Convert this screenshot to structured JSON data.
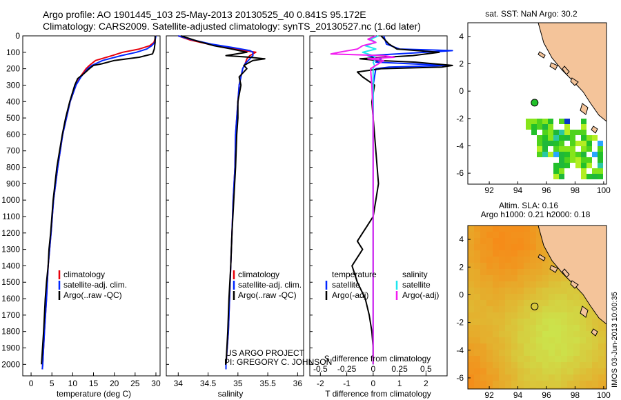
{
  "header": {
    "line1": "Argo profile: AO 1901445_103 25-May-2013 20130525_40 0.841S 95.172E",
    "line2": "Climatology: CARS2009. Satellite-adjusted climatology: synTS_20130527.nc (1.6d later)"
  },
  "colors": {
    "climatology": "#e8000b",
    "satellite": "#0026ff",
    "argo": "#000000",
    "s_satellite": "#1ee6ef",
    "s_argo": "#f21ef0",
    "land": "#f4c49a"
  },
  "depth_axis": {
    "ticks": [
      0,
      100,
      200,
      300,
      400,
      500,
      600,
      700,
      800,
      900,
      1000,
      1100,
      1200,
      1300,
      1400,
      1500,
      1600,
      1700,
      1800,
      1900,
      2000
    ],
    "ylim": [
      0,
      2070
    ]
  },
  "chart_data": [
    {
      "type": "line",
      "name": "temperature",
      "xlabel": "temperature (deg C)",
      "ylabel": "pressure",
      "xlim": [
        -2,
        31
      ],
      "xticks": [
        0,
        5,
        10,
        15,
        20,
        25,
        30
      ],
      "ylim": [
        0,
        2070
      ],
      "legend": [
        "climatology",
        "satellite-adj. clim.",
        "Argo(..raw -QC)"
      ],
      "legend_position": "bottom-center",
      "series": [
        {
          "name": "climatology",
          "color": "#e8000b",
          "depth": [
            0,
            40,
            60,
            80,
            100,
            120,
            150,
            180,
            200,
            250,
            300,
            400,
            500,
            600,
            800,
            1000,
            1200,
            1400,
            1600,
            1800,
            2000,
            2030
          ],
          "values": [
            30,
            29.5,
            28.5,
            26,
            22,
            19.5,
            15.5,
            14,
            13.2,
            11.8,
            10.8,
            9.4,
            8.5,
            7.6,
            6.4,
            5.4,
            4.8,
            4.1,
            3.7,
            3.2,
            2.8,
            2.7
          ]
        },
        {
          "name": "satellite-adj. clim.",
          "color": "#0026ff",
          "depth": [
            0,
            40,
            60,
            80,
            100,
            120,
            150,
            180,
            200,
            250,
            300,
            400,
            500,
            600,
            800,
            1000,
            1200,
            1400,
            1600,
            1800,
            2000,
            2030
          ],
          "values": [
            30,
            29.7,
            29,
            27.8,
            25.3,
            21.7,
            17.2,
            14.6,
            13.6,
            12,
            10.8,
            9.4,
            8.5,
            7.6,
            6.4,
            5.4,
            4.8,
            4.1,
            3.7,
            3.2,
            2.8,
            2.7
          ]
        },
        {
          "name": "Argo(..raw -QC)",
          "color": "#000000",
          "depth": [
            0,
            40,
            80,
            110,
            130,
            150,
            170,
            180,
            200,
            230,
            260,
            300,
            400,
            500,
            600,
            800,
            1000,
            1200,
            1300,
            1400,
            1500,
            1600,
            1800,
            2000
          ],
          "values": [
            29.8,
            29.8,
            29.6,
            29.2,
            26,
            20,
            17,
            15,
            14,
            12.7,
            11.2,
            10.5,
            9.3,
            8.3,
            7.5,
            6.2,
            5.3,
            4.7,
            4.3,
            4.1,
            3.7,
            3.4,
            3,
            2.5
          ]
        }
      ]
    },
    {
      "type": "line",
      "name": "salinity",
      "xlabel": "salinity",
      "ylabel": "pressure",
      "xlim": [
        33.8,
        36.1
      ],
      "xticks": [
        34,
        34.5,
        35,
        35.5,
        36
      ],
      "ylim": [
        0,
        2070
      ],
      "legend": [
        "climatology",
        "satellite-adj. clim.",
        "Argo(..raw -QC)"
      ],
      "legend_position": "bottom-right",
      "series": [
        {
          "name": "climatology",
          "color": "#e8000b",
          "depth": [
            0,
            25,
            50,
            70,
            90,
            100,
            120,
            140,
            170,
            200,
            250,
            300,
            400,
            500,
            600,
            800,
            1000,
            1200,
            1400,
            1600,
            1800,
            2000,
            2030
          ],
          "values": [
            34,
            34.2,
            34.5,
            34.8,
            35.1,
            35.3,
            35.2,
            35.15,
            35.12,
            35.08,
            35.05,
            35.02,
            35,
            34.98,
            34.96,
            34.95,
            34.92,
            34.9,
            34.88,
            34.86,
            34.84,
            34.8,
            34.8
          ]
        },
        {
          "name": "satellite-adj. clim.",
          "color": "#0026ff",
          "depth": [
            0,
            25,
            50,
            70,
            90,
            100,
            120,
            140,
            170,
            200,
            250,
            300,
            400,
            500,
            600,
            800,
            1000,
            1200,
            1400,
            1600,
            1800,
            2000,
            2030
          ],
          "values": [
            34,
            34.25,
            34.55,
            34.9,
            35.2,
            35.25,
            35.25,
            35.2,
            35.12,
            35.08,
            35.05,
            35.02,
            35,
            34.98,
            34.96,
            34.95,
            34.92,
            34.9,
            34.88,
            34.86,
            34.84,
            34.8,
            34.8
          ]
        },
        {
          "name": "Argo(..raw -QC)",
          "color": "#000000",
          "depth": [
            0,
            30,
            60,
            80,
            100,
            120,
            130,
            140,
            150,
            160,
            180,
            200,
            250,
            300,
            400,
            500,
            600,
            800,
            1000,
            1200,
            1400,
            1600,
            1800,
            2000
          ],
          "values": [
            34.05,
            34.3,
            34.6,
            34.9,
            35.15,
            34.8,
            35.2,
            35.45,
            35.25,
            35.2,
            35.1,
            35.15,
            35.02,
            35.05,
            35,
            35,
            34.98,
            34.96,
            34.93,
            34.9,
            34.88,
            34.85,
            34.83,
            34.8
          ]
        }
      ]
    },
    {
      "type": "line",
      "name": "difference from climatology",
      "xlabel": "T difference from climatology",
      "xlabel_top": "S difference from climatology",
      "xlim": [
        -2.4,
        2.8
      ],
      "xticks": [
        -2,
        -1,
        0,
        1,
        2
      ],
      "s_xticks": [
        {
          "label": "-0.5",
          "at": -2
        },
        {
          "label": "-0.25",
          "at": -1
        },
        {
          "label": "0",
          "at": 0
        },
        {
          "label": "0.25",
          "at": 1
        },
        {
          "label": "0.5",
          "at": 2
        }
      ],
      "ylim": [
        0,
        2070
      ],
      "legend_position": "bottom-center",
      "legend": {
        "temperature": {
          "title": "temperature",
          "items": [
            "satellite",
            "Argo(-adj)"
          ]
        },
        "salinity": {
          "title": "salinity",
          "items": [
            "satellite",
            "Argo(-adj)"
          ]
        }
      },
      "series": [
        {
          "name": "T satellite",
          "color": "#0026ff",
          "depth": [
            0,
            50,
            80,
            90,
            100,
            120,
            140,
            160,
            180,
            190,
            200,
            300,
            600,
            1000,
            1500,
            2000
          ],
          "values": [
            0.4,
            0.5,
            1,
            3,
            2,
            -0.2,
            0.3,
            0.1,
            2.8,
            0.6,
            0.1,
            0,
            0,
            0,
            0,
            0
          ]
        },
        {
          "name": "T Argo(-adj)",
          "color": "#000000",
          "depth": [
            0,
            50,
            80,
            100,
            120,
            140,
            150,
            160,
            180,
            190,
            200,
            220,
            250,
            300,
            400,
            500,
            600,
            700,
            800,
            900,
            1000,
            1100,
            1150,
            1200,
            1250,
            1300,
            1400,
            1500,
            1600,
            1700,
            1800,
            1900,
            2000
          ],
          "values": [
            0.3,
            0.6,
            0.9,
            2.5,
            1.5,
            -0.5,
            0.2,
            1.6,
            3,
            2.6,
            0.3,
            -0.6,
            -0.4,
            0.05,
            -0.05,
            0,
            0.05,
            0.1,
            0.15,
            0.2,
            0.1,
            0,
            -0.2,
            -0.4,
            -0.6,
            -0.4,
            -0.8,
            -0.6,
            -0.3,
            -0.15,
            -0.05,
            0,
            0
          ]
        },
        {
          "name": "S satellite",
          "color": "#1ee6ef",
          "depth": [
            0,
            20,
            40,
            60,
            80,
            100,
            120,
            140,
            160,
            180,
            200,
            300,
            500,
            800,
            1200,
            1600,
            2000
          ],
          "values": [
            0.2,
            -0.1,
            0.1,
            -0.3,
            0.1,
            -0.4,
            0,
            0.1,
            0,
            0.05,
            0,
            0,
            0,
            0,
            0,
            0,
            0
          ]
        },
        {
          "name": "S Argo(-adj)",
          "color": "#f21ef0",
          "depth": [
            0,
            20,
            40,
            60,
            80,
            100,
            110,
            120,
            130,
            140,
            150,
            170,
            200,
            300,
            500,
            800,
            1000,
            1200,
            1600,
            2000
          ],
          "values": [
            0.1,
            -0.2,
            0.1,
            -0.4,
            -0.6,
            -1.3,
            -1.6,
            0.4,
            0.8,
            -0.2,
            0.4,
            0.2,
            -0.1,
            -0.05,
            0,
            0,
            0,
            0,
            0,
            0
          ]
        }
      ]
    },
    {
      "type": "heatmap",
      "name": "sat. SST map",
      "title": "sat. SST: NaN Argo: 30.2",
      "xlim": [
        90.5,
        100.2
      ],
      "xticks": [
        92,
        94,
        96,
        98,
        100
      ],
      "ylim": [
        -6.8,
        5
      ],
      "yticks": [
        -6,
        -4,
        -2,
        0,
        2,
        4
      ],
      "argo_position": {
        "lon": 95.172,
        "lat": -0.841
      }
    },
    {
      "type": "heatmap",
      "name": "Altim. SLA map",
      "title": "Altim. SLA: 0.16",
      "subtitle": "Argo h1000: 0.21 h2000: 0.18",
      "xlim": [
        90.5,
        100.2
      ],
      "xticks": [
        92,
        94,
        96,
        98,
        100
      ],
      "ylim": [
        -6.8,
        5
      ],
      "yticks": [
        -6,
        -4,
        -2,
        0,
        2,
        4
      ],
      "argo_position": {
        "lon": 95.172,
        "lat": -0.841
      }
    }
  ],
  "annotations": {
    "project": "US ARGO PROJECT",
    "pi": "PI: GREGORY C. JOHNSON",
    "stamp": "IMOS 03-Jun-2013 10:00:35"
  }
}
